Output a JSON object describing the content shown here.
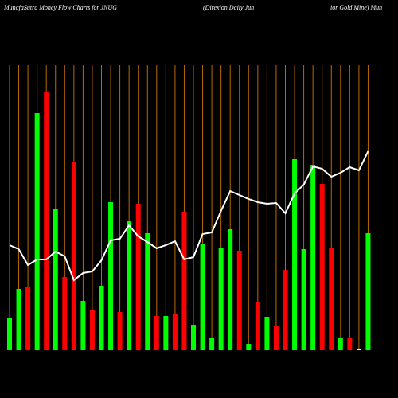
{
  "chart_data": {
    "type": "bar",
    "title": [
      "MunafaSutra  Money Flow  Charts for JNUG",
      "(Direxion  Daily Jun",
      "ior Gold Mine) Mun"
    ],
    "ylim": [
      0,
      340
    ],
    "grid_color": "#b86a00",
    "series": [
      {
        "type": "bar",
        "values": [
          40,
          77,
          79,
          298,
          325,
          177,
          92,
          237,
          62,
          50,
          81,
          186,
          48,
          162,
          184,
          147,
          43,
          43,
          46,
          174,
          32,
          133,
          15,
          129,
          152,
          125,
          8,
          60,
          42,
          30,
          101,
          240,
          127,
          233,
          209,
          129,
          16,
          15,
          2,
          147
        ],
        "colors": [
          "#0f0",
          "#0f0",
          "#f00",
          "#0f0",
          "#f00",
          "#0f0",
          "#f00",
          "#f00",
          "#0f0",
          "#f00",
          "#0f0",
          "#0f0",
          "#f00",
          "#0f0",
          "#f00",
          "#0f0",
          "#f00",
          "#0f0",
          "#f00",
          "#f00",
          "#0f0",
          "#0f0",
          "#0f0",
          "#0f0",
          "#0f0",
          "#f00",
          "#0f0",
          "#f00",
          "#0f0",
          "#f00",
          "#f00",
          "#0f0",
          "#0f0",
          "#0f0",
          "#f00",
          "#f00",
          "#0f0",
          "#f00",
          "#fff",
          "#0f0"
        ]
      },
      {
        "type": "line",
        "color": "#fff",
        "values": [
          132,
          127,
          107,
          114,
          114,
          124,
          118,
          88,
          97,
          99,
          113,
          138,
          140,
          157,
          143,
          136,
          128,
          132,
          137,
          114,
          117,
          146,
          148,
          175,
          200,
          195,
          190,
          186,
          184,
          185,
          172,
          197,
          208,
          231,
          228,
          218,
          223,
          230,
          226,
          250
        ]
      }
    ]
  }
}
